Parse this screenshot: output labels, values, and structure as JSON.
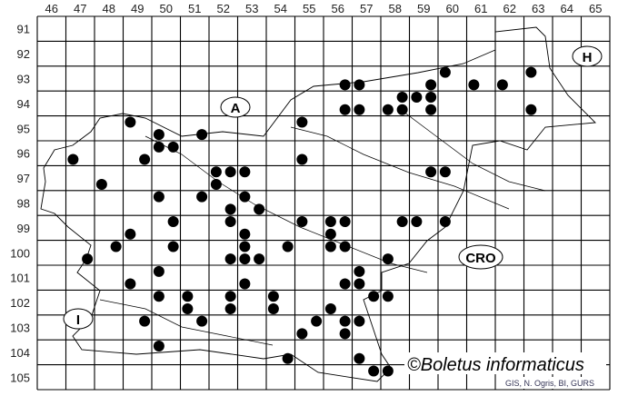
{
  "map": {
    "columns": [
      "46",
      "47",
      "48",
      "49",
      "50",
      "51",
      "52",
      "53",
      "54",
      "55",
      "56",
      "57",
      "58",
      "59",
      "60",
      "61",
      "62",
      "63",
      "64",
      "65"
    ],
    "rows": [
      "91",
      "92",
      "93",
      "94",
      "95",
      "96",
      "97",
      "98",
      "99",
      "100",
      "101",
      "102",
      "103",
      "104",
      "105"
    ],
    "country_labels": {
      "austria": "A",
      "hungary": "H",
      "italy": "I",
      "croatia": "CRO"
    },
    "copyright": "©Boletus informaticus",
    "credit": "GIS, N. Ogris, BI, GURS",
    "dot_color": "#000000",
    "records": [
      [
        49.25,
        95.25
      ],
      [
        50.25,
        95.75
      ],
      [
        51.75,
        95.75
      ],
      [
        50.25,
        96.25
      ],
      [
        50.75,
        96.25
      ],
      [
        47.25,
        96.75
      ],
      [
        49.75,
        96.75
      ],
      [
        48.25,
        97.75
      ],
      [
        52.25,
        97.25
      ],
      [
        52.75,
        97.25
      ],
      [
        53.25,
        97.25
      ],
      [
        52.25,
        97.75
      ],
      [
        55.25,
        95.25
      ],
      [
        55.25,
        96.75
      ],
      [
        50.25,
        98.25
      ],
      [
        51.75,
        98.25
      ],
      [
        53.25,
        98.25
      ],
      [
        52.75,
        98.75
      ],
      [
        53.75,
        98.75
      ],
      [
        50.75,
        99.25
      ],
      [
        52.75,
        99.25
      ],
      [
        55.25,
        99.25
      ],
      [
        49.25,
        99.75
      ],
      [
        53.25,
        99.75
      ],
      [
        48.75,
        100.25
      ],
      [
        50.75,
        100.25
      ],
      [
        53.25,
        100.25
      ],
      [
        54.75,
        100.25
      ],
      [
        47.75,
        100.75
      ],
      [
        52.75,
        100.75
      ],
      [
        53.25,
        100.75
      ],
      [
        53.75,
        100.75
      ],
      [
        50.25,
        101.25
      ],
      [
        49.25,
        101.75
      ],
      [
        53.25,
        101.75
      ],
      [
        50.25,
        102.25
      ],
      [
        51.25,
        102.25
      ],
      [
        52.75,
        102.25
      ],
      [
        54.25,
        102.25
      ],
      [
        51.25,
        102.75
      ],
      [
        52.75,
        102.75
      ],
      [
        54.25,
        102.75
      ],
      [
        49.75,
        103.25
      ],
      [
        51.75,
        103.25
      ],
      [
        55.25,
        103.75
      ],
      [
        50.25,
        104.25
      ],
      [
        54.75,
        104.75
      ],
      [
        56.75,
        93.75
      ],
      [
        57.25,
        93.75
      ],
      [
        60.25,
        93.25
      ],
      [
        59.75,
        93.75
      ],
      [
        61.25,
        93.75
      ],
      [
        62.25,
        93.75
      ],
      [
        63.25,
        93.25
      ],
      [
        58.75,
        94.25
      ],
      [
        59.25,
        94.25
      ],
      [
        59.75,
        94.25
      ],
      [
        56.75,
        94.75
      ],
      [
        57.25,
        94.75
      ],
      [
        58.25,
        94.75
      ],
      [
        58.75,
        94.75
      ],
      [
        59.75,
        94.75
      ],
      [
        63.25,
        94.75
      ],
      [
        59.75,
        97.25
      ],
      [
        60.25,
        97.25
      ],
      [
        56.25,
        99.25
      ],
      [
        56.75,
        99.25
      ],
      [
        58.75,
        99.25
      ],
      [
        59.25,
        99.25
      ],
      [
        60.25,
        99.25
      ],
      [
        56.25,
        99.75
      ],
      [
        56.25,
        100.25
      ],
      [
        56.75,
        100.25
      ],
      [
        58.25,
        100.75
      ],
      [
        57.25,
        101.25
      ],
      [
        56.75,
        101.75
      ],
      [
        57.25,
        101.75
      ],
      [
        57.75,
        102.25
      ],
      [
        58.25,
        102.25
      ],
      [
        56.25,
        102.75
      ],
      [
        55.75,
        103.25
      ],
      [
        56.75,
        103.25
      ],
      [
        57.25,
        103.25
      ],
      [
        56.75,
        103.75
      ],
      [
        57.25,
        104.75
      ],
      [
        57.75,
        105.25
      ],
      [
        58.25,
        105.25
      ]
    ]
  }
}
